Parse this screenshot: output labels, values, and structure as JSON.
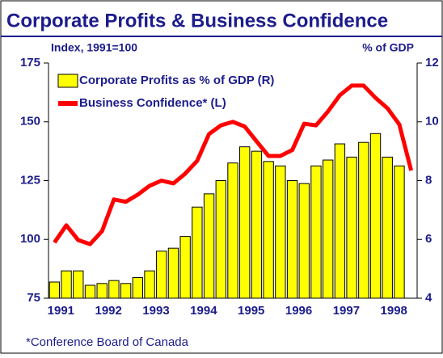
{
  "chart_data": {
    "type": "bar_line",
    "title": "Corporate Profits & Business Confidence",
    "y_label": "Index, 1991=100",
    "y2_label": "% of GDP",
    "footnote": "*Conference Board of Canada",
    "categories": [
      "1991",
      null,
      null,
      null,
      "1992",
      null,
      null,
      null,
      "1993",
      null,
      null,
      null,
      "1994",
      null,
      null,
      null,
      "1995",
      null,
      null,
      null,
      "1996",
      null,
      null,
      null,
      "1997",
      null,
      null,
      null,
      "1998",
      null,
      null
    ],
    "series": [
      {
        "name": "Corporate Profits as % of GDP (R)",
        "color": "#ffff00",
        "axis": "y2",
        "kind": "bar",
        "values": [
          4.55,
          4.93,
          4.93,
          4.44,
          4.5,
          4.6,
          4.5,
          4.7,
          4.93,
          5.6,
          5.7,
          6.1,
          7.1,
          7.55,
          8.0,
          8.6,
          9.15,
          9.0,
          8.65,
          8.5,
          8.0,
          7.9,
          8.5,
          8.7,
          9.25,
          8.8,
          9.3,
          9.6,
          8.8,
          8.5,
          null
        ]
      },
      {
        "name": "Business Confidence* (L)",
        "color": "#ff0000",
        "kind": "line",
        "values": [
          98.7,
          106,
          99.7,
          98,
          103.5,
          117,
          116,
          119,
          122.8,
          125,
          123.8,
          128,
          133.4,
          144.8,
          148.5,
          150,
          148,
          141.7,
          135.5,
          135.5,
          138,
          149.2,
          148.5,
          154.4,
          161.3,
          165.4,
          165.4,
          160.2,
          155.8,
          148.9,
          129.3
        ]
      }
    ],
    "ylim": [
      75,
      175
    ],
    "yticks": [
      75,
      100,
      125,
      150,
      175
    ],
    "y2lim": [
      4,
      12
    ],
    "y2ticks": [
      4,
      6,
      8,
      10,
      12
    ]
  }
}
